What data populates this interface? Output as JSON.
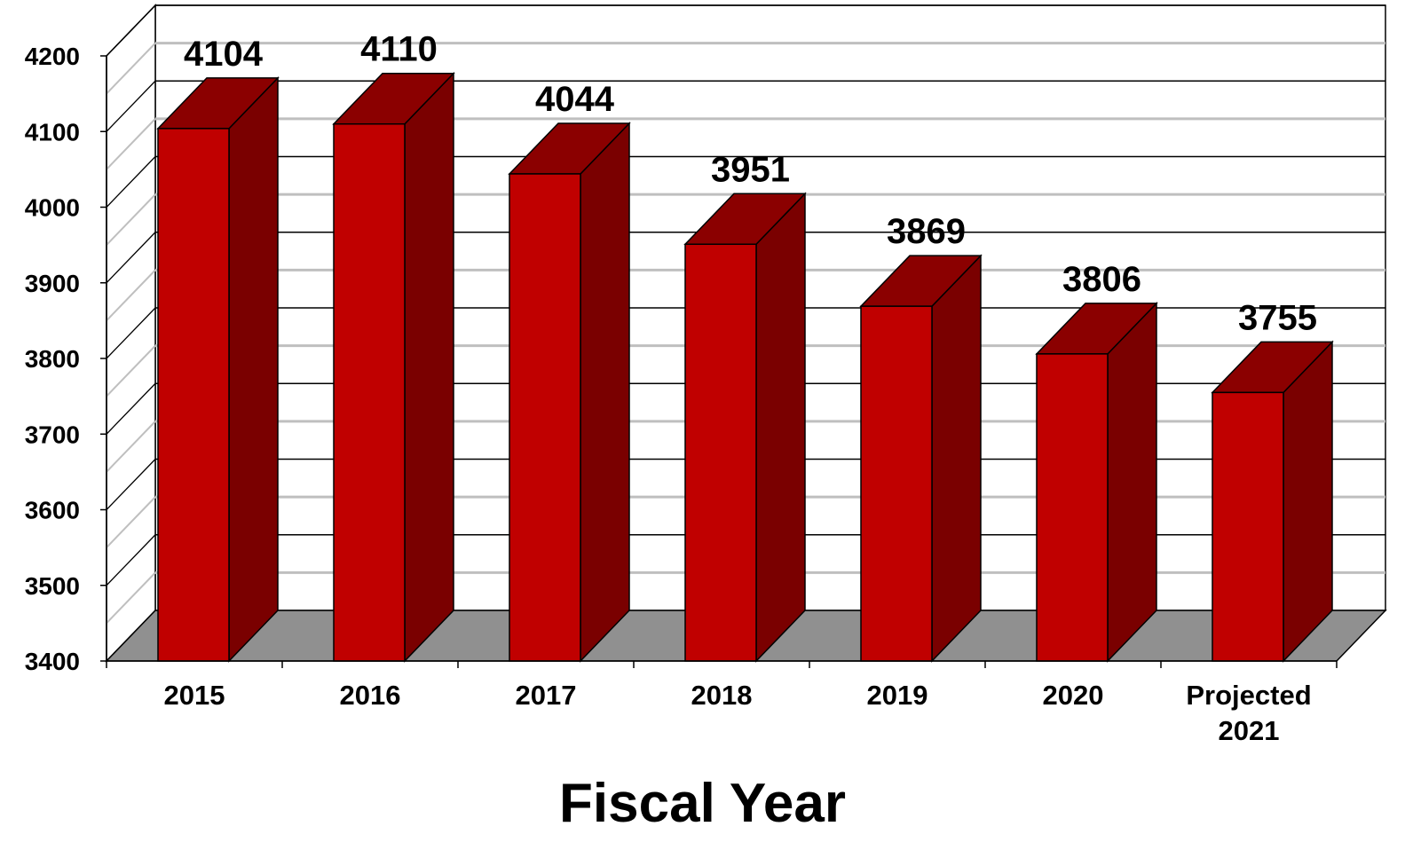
{
  "chart_data": {
    "type": "bar",
    "style": "3d-column",
    "categories": [
      "2015",
      "2016",
      "2017",
      "2018",
      "2019",
      "2020",
      "Projected 2021"
    ],
    "values": [
      4104,
      4110,
      4044,
      3951,
      3869,
      3806,
      3755
    ],
    "xlabel": "Fiscal Year",
    "ylabel": "",
    "ylim": [
      3400,
      4200
    ],
    "yticks": [
      3400,
      3500,
      3600,
      3700,
      3800,
      3900,
      4000,
      4100,
      4200
    ],
    "grid": true,
    "data_labels": true
  },
  "colors": {
    "bar_front": "#c00000",
    "bar_top": "#8b0000",
    "bar_side": "#7a0000",
    "floor": "#909090",
    "gridline_front": "#000000",
    "gridline_back": "#bfbfbf"
  }
}
